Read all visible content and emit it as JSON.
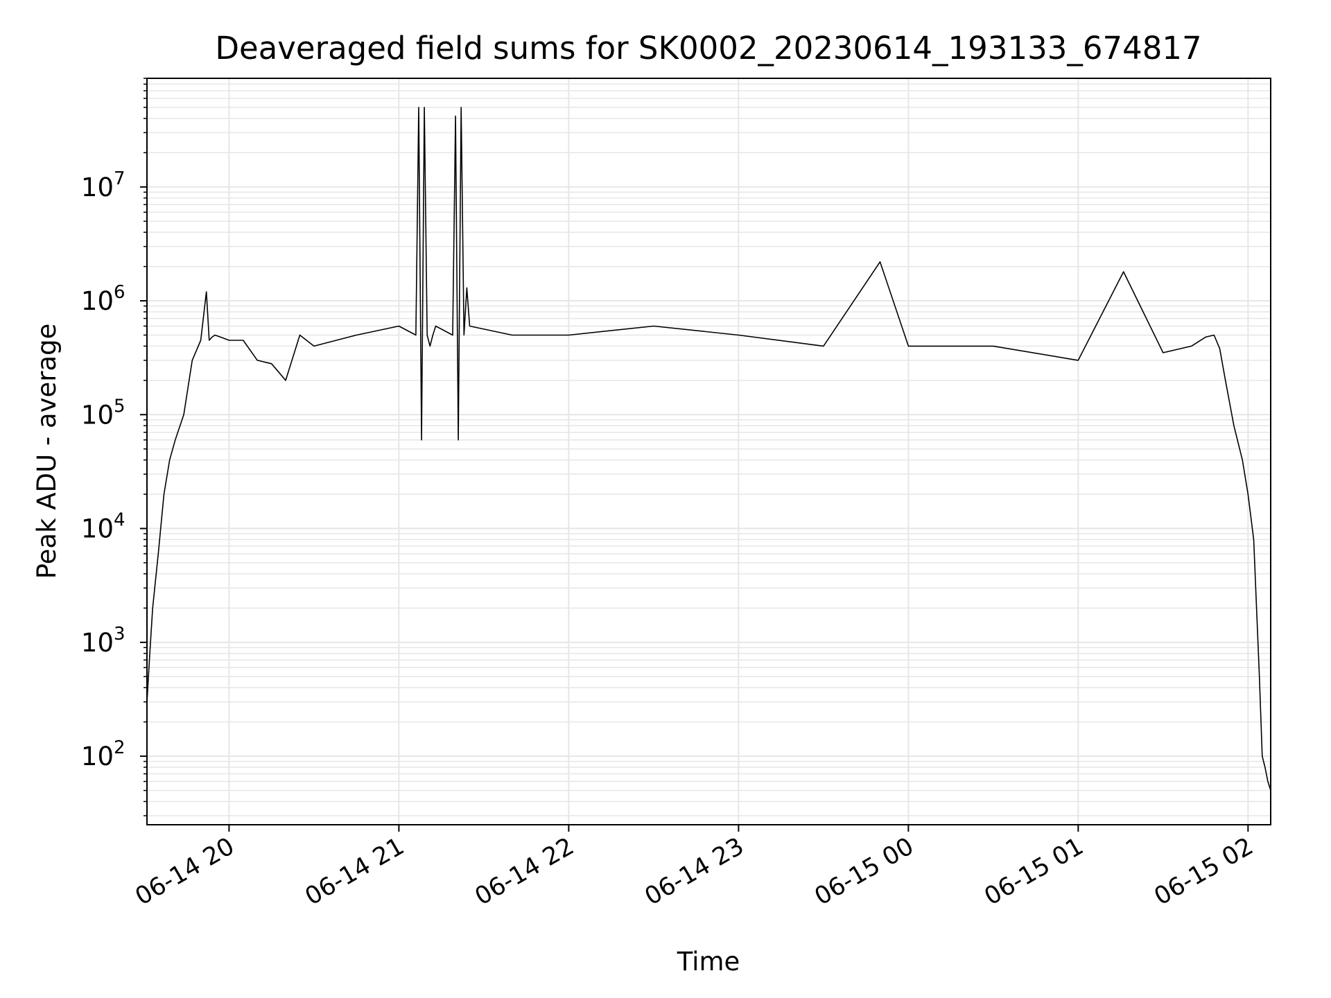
{
  "chart_data": {
    "type": "line",
    "title": "Deaveraged field sums for SK0002_20230614_193133_674817",
    "xlabel": "Time",
    "ylabel": "Peak ADU - average",
    "yscale": "log",
    "grid": true,
    "line_color": "#000000",
    "grid_color": "#e6e6e6",
    "xlim": [
      "2023-06-14 19:31",
      "2023-06-15 02:08"
    ],
    "ylim": [
      25,
      90000000
    ],
    "x_ticks": [
      "2023-06-14 20:00",
      "2023-06-14 21:00",
      "2023-06-14 22:00",
      "2023-06-14 23:00",
      "2023-06-15 00:00",
      "2023-06-15 01:00",
      "2023-06-15 02:00"
    ],
    "x_tick_labels": [
      "06-14 20",
      "06-14 21",
      "06-14 22",
      "06-14 23",
      "06-15 00",
      "06-15 01",
      "06-15 02"
    ],
    "y_ticks": [
      100,
      1000,
      10000,
      100000,
      1000000,
      10000000
    ],
    "y_tick_labels": [
      {
        "base": "10",
        "exp": "2"
      },
      {
        "base": "10",
        "exp": "3"
      },
      {
        "base": "10",
        "exp": "4"
      },
      {
        "base": "10",
        "exp": "5"
      },
      {
        "base": "10",
        "exp": "6"
      },
      {
        "base": "10",
        "exp": "7"
      }
    ],
    "series": [
      {
        "x": [
          "2023-06-14 19:31",
          "2023-06-14 19:32",
          "2023-06-14 19:33",
          "2023-06-14 19:35",
          "2023-06-14 19:37",
          "2023-06-14 19:39",
          "2023-06-14 19:41",
          "2023-06-14 19:44",
          "2023-06-14 19:47",
          "2023-06-14 19:50",
          "2023-06-14 19:52",
          "2023-06-14 19:53",
          "2023-06-14 19:54",
          "2023-06-14 19:55",
          "2023-06-14 19:57",
          "2023-06-14 20:00",
          "2023-06-14 20:05",
          "2023-06-14 20:10",
          "2023-06-14 20:15",
          "2023-06-14 20:20",
          "2023-06-14 20:25",
          "2023-06-14 20:30",
          "2023-06-14 20:45",
          "2023-06-14 21:00",
          "2023-06-14 21:06",
          "2023-06-14 21:07",
          "2023-06-14 21:08",
          "2023-06-14 21:09",
          "2023-06-14 21:10",
          "2023-06-14 21:11",
          "2023-06-14 21:12",
          "2023-06-14 21:13",
          "2023-06-14 21:19",
          "2023-06-14 21:20",
          "2023-06-14 21:21",
          "2023-06-14 21:22",
          "2023-06-14 21:23",
          "2023-06-14 21:24",
          "2023-06-14 21:25",
          "2023-06-14 21:40",
          "2023-06-14 22:00",
          "2023-06-14 22:30",
          "2023-06-14 23:00",
          "2023-06-14 23:30",
          "2023-06-14 23:50",
          "2023-06-15 00:00",
          "2023-06-15 00:30",
          "2023-06-15 01:00",
          "2023-06-15 01:16",
          "2023-06-15 01:30",
          "2023-06-15 01:40",
          "2023-06-15 01:45",
          "2023-06-15 01:48",
          "2023-06-15 01:50",
          "2023-06-15 01:52",
          "2023-06-15 01:55",
          "2023-06-15 01:58",
          "2023-06-15 02:00",
          "2023-06-15 02:02",
          "2023-06-15 02:03",
          "2023-06-15 02:04",
          "2023-06-15 02:05",
          "2023-06-15 02:06",
          "2023-06-15 02:07",
          "2023-06-15 02:08"
        ],
        "y": [
          300,
          800,
          2000,
          6000,
          20000,
          40000,
          60000,
          100000,
          300000,
          450000,
          1200000,
          450000,
          480000,
          500000,
          480000,
          450000,
          450000,
          300000,
          280000,
          200000,
          500000,
          400000,
          500000,
          600000,
          500000,
          50000000,
          60000,
          50000000,
          500000,
          400000,
          500000,
          600000,
          500000,
          42000000,
          60000,
          50000000,
          500000,
          1300000,
          600000,
          500000,
          500000,
          600000,
          500000,
          400000,
          2200000,
          400000,
          400000,
          300000,
          1800000,
          350000,
          400000,
          480000,
          500000,
          380000,
          200000,
          80000,
          40000,
          20000,
          8000,
          2000,
          500,
          100,
          80,
          60,
          50
        ]
      }
    ]
  }
}
